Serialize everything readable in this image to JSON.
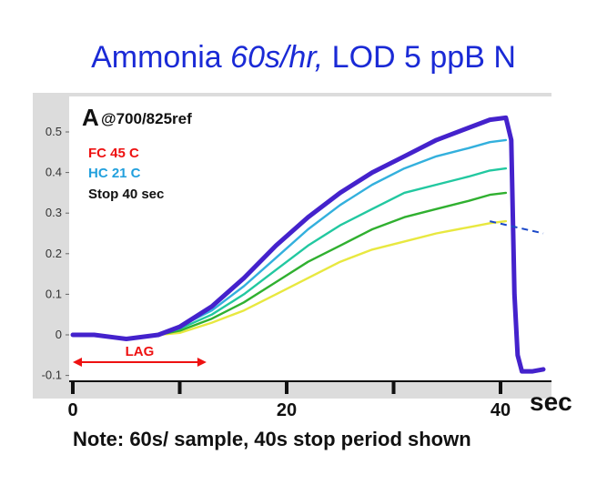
{
  "title": {
    "prefix": "Ammonia ",
    "italic": "60s/hr,",
    "suffix": " LOD 5 ppB N"
  },
  "note": "Note: 60s/ sample, 40s stop period shown",
  "chart_data": {
    "type": "line",
    "xlabel": "sec",
    "ylabel": "",
    "xlim": [
      0,
      44
    ],
    "ylim": [
      -0.12,
      0.6
    ],
    "x_ticks": [
      0,
      20,
      40
    ],
    "y_ticks": [
      -0.1,
      0,
      0.1,
      0.2,
      0.3,
      0.4,
      0.5
    ],
    "y_tick_labels": [
      "-0.1",
      "0",
      "0.1",
      "0.2",
      "0.3",
      "0.4",
      "0.5"
    ],
    "grid": false,
    "annotations": {
      "panel_letter": "A",
      "panel_sub": "@700/825ref",
      "fc": "FC 45 C",
      "hc": "HC 21 C",
      "stop": "Stop 40 sec",
      "lag": "LAG",
      "lag_range": [
        0,
        12.5
      ]
    },
    "series": [
      {
        "color": "#4422cc",
        "x": [
          0,
          2,
          5,
          8,
          10,
          13,
          16,
          19,
          22,
          25,
          28,
          31,
          34,
          37,
          39,
          40.5,
          41,
          41.3,
          41.6,
          42,
          43,
          44
        ],
        "y": [
          0,
          0,
          -0.01,
          0,
          0.02,
          0.07,
          0.14,
          0.22,
          0.29,
          0.35,
          0.4,
          0.44,
          0.48,
          0.51,
          0.53,
          0.535,
          0.48,
          0.1,
          -0.05,
          -0.09,
          -0.09,
          -0.085
        ]
      },
      {
        "color": "#33b0dd",
        "x": [
          0,
          2,
          5,
          8,
          10,
          13,
          16,
          19,
          22,
          25,
          28,
          31,
          34,
          37,
          39,
          40.5
        ],
        "y": [
          0,
          0,
          -0.01,
          0,
          0.02,
          0.06,
          0.12,
          0.19,
          0.26,
          0.32,
          0.37,
          0.41,
          0.44,
          0.46,
          0.475,
          0.48
        ]
      },
      {
        "color": "#22c8a0",
        "x": [
          0,
          2,
          5,
          8,
          10,
          13,
          16,
          19,
          22,
          25,
          28,
          31,
          34,
          37,
          39,
          40.5
        ],
        "y": [
          0,
          0,
          -0.01,
          0,
          0.015,
          0.05,
          0.1,
          0.16,
          0.22,
          0.27,
          0.31,
          0.35,
          0.37,
          0.39,
          0.405,
          0.41
        ]
      },
      {
        "color": "#30b030",
        "x": [
          0,
          2,
          5,
          8,
          10,
          13,
          16,
          19,
          22,
          25,
          28,
          31,
          34,
          37,
          39,
          40.5
        ],
        "y": [
          0,
          0,
          -0.01,
          0,
          0.01,
          0.04,
          0.08,
          0.13,
          0.18,
          0.22,
          0.26,
          0.29,
          0.31,
          0.33,
          0.345,
          0.35
        ]
      },
      {
        "color": "#e8e840",
        "x": [
          0,
          2,
          5,
          8,
          10,
          13,
          16,
          19,
          22,
          25,
          28,
          31,
          34,
          37,
          39,
          40.5
        ],
        "y": [
          0,
          0,
          -0.01,
          0,
          0.005,
          0.03,
          0.06,
          0.1,
          0.14,
          0.18,
          0.21,
          0.23,
          0.25,
          0.265,
          0.275,
          0.28
        ]
      }
    ],
    "extrapolation_line": {
      "color": "#1a48c8",
      "x": [
        39,
        44
      ],
      "y": [
        0.28,
        0.25
      ]
    }
  }
}
